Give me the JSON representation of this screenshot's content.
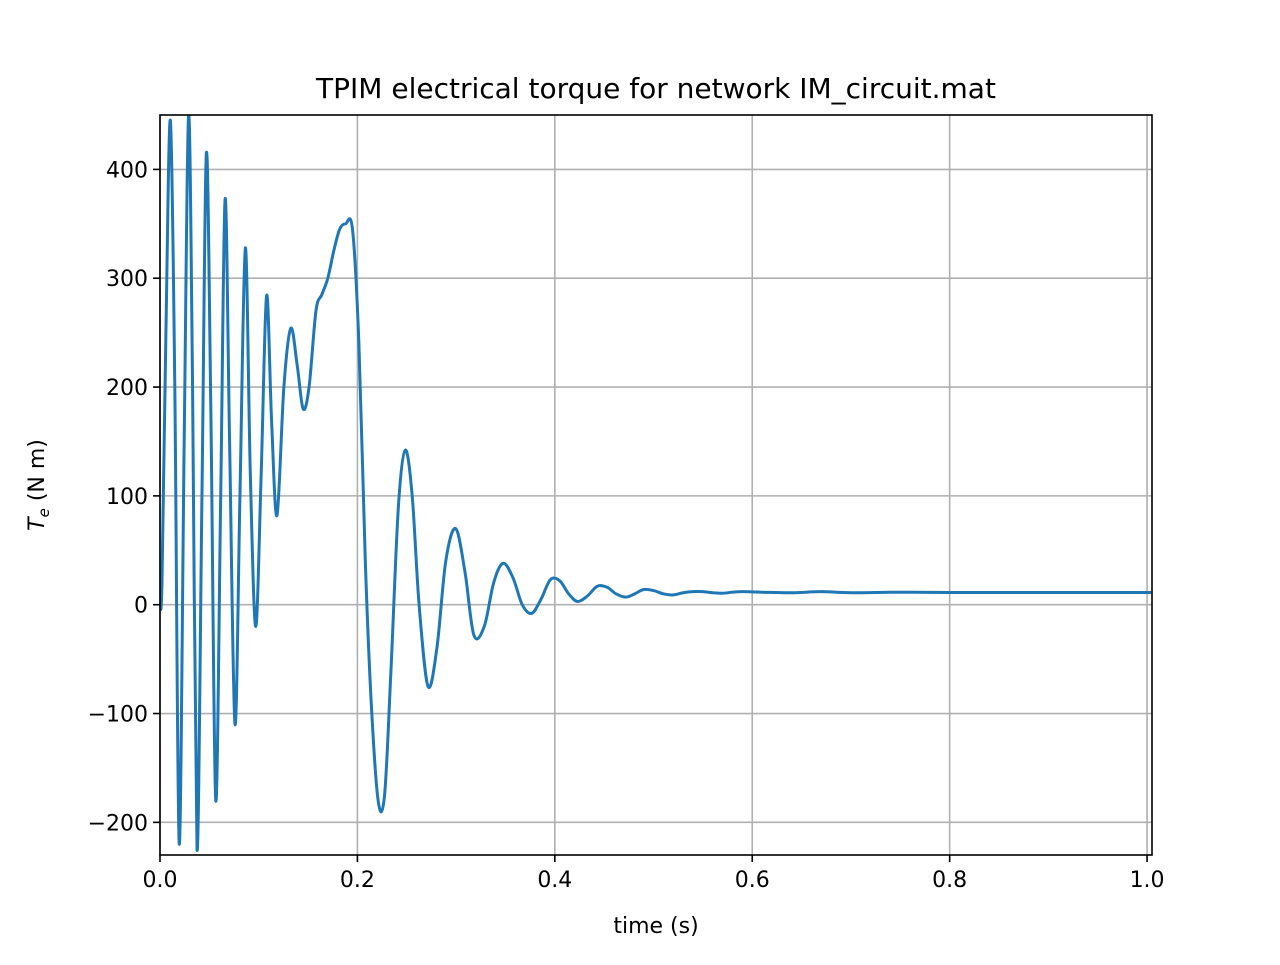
{
  "chart_data": {
    "type": "line",
    "title": "TPIM electrical torque for network IM_circuit.mat",
    "xlabel": "time (s)",
    "ylabel_symbol": "T",
    "ylabel_subscript": "e",
    "ylabel_unit": " (N m)",
    "xlim": [
      0.0,
      1.005
    ],
    "ylim": [
      -230,
      450
    ],
    "grid": true,
    "series_color": "#1f77b4",
    "x_ticks": [
      0.0,
      0.2,
      0.4,
      0.6,
      0.8,
      1.0
    ],
    "x_tick_labels": [
      "0.0",
      "0.2",
      "0.4",
      "0.6",
      "0.8",
      "1.0"
    ],
    "y_ticks": [
      -200,
      -100,
      0,
      100,
      200,
      300,
      400
    ],
    "y_tick_labels": [
      "−200",
      "−100",
      "0",
      "100",
      "200",
      "300",
      "400"
    ],
    "series": [
      {
        "x": [
          0.0,
          0.002,
          0.006,
          0.0105,
          0.015,
          0.0195,
          0.0245,
          0.029,
          0.033,
          0.0375,
          0.0425,
          0.047,
          0.0515,
          0.0565,
          0.0615,
          0.066,
          0.0705,
          0.076,
          0.081,
          0.0865,
          0.0915,
          0.097,
          0.1025,
          0.108,
          0.113,
          0.1185,
          0.1255,
          0.1325,
          0.139,
          0.145,
          0.151,
          0.158,
          0.164,
          0.17,
          0.176,
          0.182,
          0.188,
          0.195,
          0.2015,
          0.208,
          0.214,
          0.221,
          0.2275,
          0.234,
          0.2415,
          0.2485,
          0.2555,
          0.2625,
          0.2715,
          0.2805,
          0.2895,
          0.2995,
          0.309,
          0.318,
          0.3285,
          0.338,
          0.3475,
          0.3575,
          0.367,
          0.3765,
          0.386,
          0.3955,
          0.405,
          0.414,
          0.423,
          0.433,
          0.443,
          0.453,
          0.462,
          0.472,
          0.481,
          0.49,
          0.5,
          0.51,
          0.52,
          0.53,
          0.54,
          0.55,
          0.56,
          0.57,
          0.58,
          0.59,
          0.61,
          0.64,
          0.67,
          0.7,
          0.75,
          0.8,
          0.9,
          1.005
        ],
        "y": [
          0,
          20,
          250,
          445,
          200,
          -220,
          150,
          450,
          200,
          -225,
          100,
          415,
          180,
          -180,
          100,
          373,
          150,
          -110,
          100,
          328,
          120,
          -20,
          120,
          284,
          170,
          82,
          200,
          254,
          220,
          180,
          200,
          270,
          285,
          300,
          325,
          345,
          350,
          345,
          240,
          40,
          -90,
          -180,
          -175,
          -60,
          90,
          142,
          100,
          0,
          -75,
          -40,
          40,
          70,
          30,
          -28,
          -20,
          20,
          38,
          25,
          0,
          -8,
          5,
          23,
          22,
          10,
          3,
          8,
          17,
          16,
          10,
          7,
          10,
          14,
          13,
          10,
          9,
          11,
          12,
          12,
          11,
          10.5,
          11.5,
          12,
          11.5,
          11,
          12,
          11,
          11.5,
          11.2,
          11.2,
          11.2
        ]
      }
    ]
  }
}
